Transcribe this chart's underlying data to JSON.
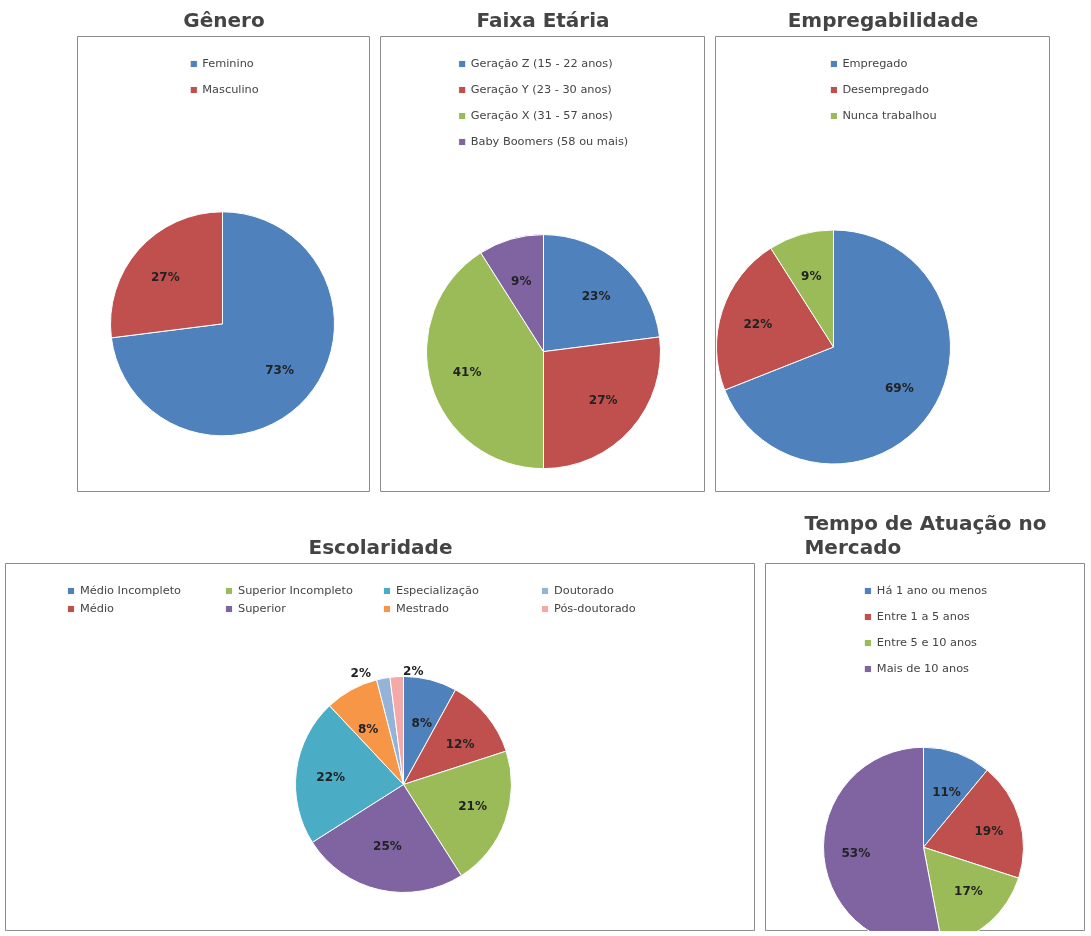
{
  "chart_data": [
    {
      "type": "pie",
      "title": "Gênero",
      "categories": [
        "Feminino",
        "Masculino"
      ],
      "values": [
        73,
        27
      ],
      "colors": [
        "#4f81bd",
        "#c0504d"
      ],
      "value_labels": [
        "73%",
        "27%"
      ],
      "legend": "top"
    },
    {
      "type": "pie",
      "title": "Faixa Etária",
      "categories": [
        "Geração Z (15 - 22 anos)",
        "Geração Y (23 - 30 anos)",
        "Geração X (31 - 57 anos)",
        "Baby Boomers (58 ou mais)"
      ],
      "values": [
        23,
        27,
        41,
        9
      ],
      "colors": [
        "#4f81bd",
        "#c0504d",
        "#9bbb59",
        "#8064a2"
      ],
      "value_labels": [
        "23%",
        "27%",
        "41%",
        "9%"
      ],
      "legend": "top"
    },
    {
      "type": "pie",
      "title": "Empregabilidade",
      "categories": [
        "Empregado",
        "Desempregado",
        "Nunca trabalhou"
      ],
      "values": [
        69,
        22,
        9
      ],
      "colors": [
        "#4f81bd",
        "#c0504d",
        "#9bbb59"
      ],
      "value_labels": [
        "69%",
        "22%",
        "9%"
      ],
      "legend": "top"
    },
    {
      "type": "pie",
      "title": "Escolaridade",
      "categories": [
        "Médio Incompleto",
        "Médio",
        "Superior Incompleto",
        "Superior",
        "Especialização",
        "Mestrado",
        "Doutorado",
        "Pós-doutorado"
      ],
      "values": [
        8,
        12,
        21,
        25,
        22,
        8,
        2,
        2
      ],
      "colors": [
        "#4f81bd",
        "#c0504d",
        "#9bbb59",
        "#8064a2",
        "#4bacc6",
        "#f79646",
        "#95b3d7",
        "#f2a9a8"
      ],
      "value_labels": [
        "8%",
        "12%",
        "21%",
        "25%",
        "22%",
        "8%",
        "2%",
        "2%"
      ],
      "legend": "top"
    },
    {
      "type": "pie",
      "title": "Tempo de Atuação no Mercado",
      "categories": [
        "Há 1 ano ou menos",
        "Entre 1 a 5 anos",
        "Entre 5 e 10 anos",
        "Mais de 10 anos"
      ],
      "values": [
        11,
        19,
        17,
        53
      ],
      "colors": [
        "#4f81bd",
        "#c0504d",
        "#9bbb59",
        "#8064a2"
      ],
      "value_labels": [
        "11%",
        "19%",
        "17%",
        "53%"
      ],
      "legend": "top"
    }
  ]
}
